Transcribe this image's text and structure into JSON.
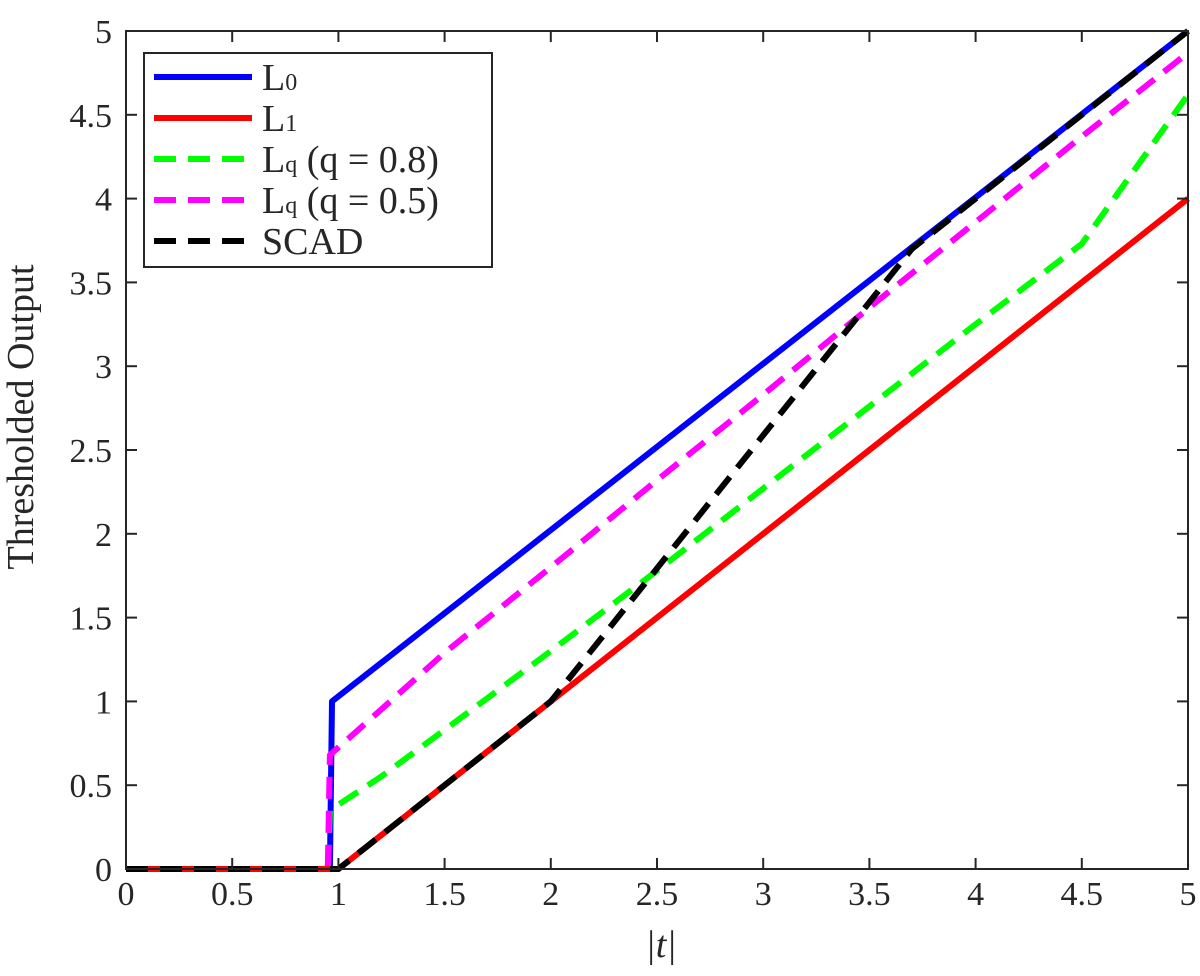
{
  "chart_data": {
    "type": "line",
    "title": "",
    "xlabel": "|t|",
    "ylabel": "Thresholded Output",
    "xlim": [
      0,
      5
    ],
    "ylim": [
      0,
      5
    ],
    "grid": false,
    "legend_position": "top-left",
    "x_ticks": [
      0,
      0.5,
      1,
      1.5,
      2,
      2.5,
      3,
      3.5,
      4,
      4.5,
      5
    ],
    "y_ticks": [
      0,
      0.5,
      1,
      1.5,
      2,
      2.5,
      3,
      3.5,
      4,
      4.5,
      5
    ],
    "x_tick_labels": [
      "0",
      "0.5",
      "1",
      "1.5",
      "2",
      "2.5",
      "3",
      "3.5",
      "4",
      "4.5",
      "5"
    ],
    "y_tick_labels": [
      "0",
      "0.5",
      "1",
      "1.5",
      "2",
      "2.5",
      "3",
      "3.5",
      "4",
      "4.5",
      "5"
    ],
    "series": [
      {
        "key": "l0",
        "legend_main": "L",
        "legend_sub": "0",
        "color": "#0000ff",
        "style": "solid",
        "points": [
          [
            0,
            0
          ],
          [
            0.95,
            0
          ],
          [
            0.96,
            0
          ],
          [
            0.97,
            1.0
          ],
          [
            5,
            5
          ]
        ]
      },
      {
        "key": "lq08",
        "legend_main": "L",
        "legend_sub": "q",
        "legend_suffix": " (q = 0.8)",
        "color": "#00ff00",
        "style": "dashed",
        "points": [
          [
            0,
            0
          ],
          [
            0.94,
            0
          ],
          [
            0.95,
            0
          ],
          [
            0.96,
            0.35
          ],
          [
            1.2,
            0.55
          ],
          [
            1.5,
            0.83
          ],
          [
            2,
            1.3
          ],
          [
            2.5,
            1.78
          ],
          [
            3,
            2.27
          ],
          [
            3.5,
            2.76
          ],
          [
            4,
            3.25
          ],
          [
            4.5,
            3.73
          ],
          [
            5,
            4.62
          ]
        ]
      },
      {
        "key": "lq05",
        "legend_main": "L",
        "legend_sub": "q",
        "legend_suffix": " (q = 0.5)",
        "color": "#ff00ff",
        "style": "dashed",
        "points": [
          [
            0,
            0
          ],
          [
            0.94,
            0
          ],
          [
            0.95,
            0
          ],
          [
            0.96,
            0.68
          ],
          [
            1.2,
            0.95
          ],
          [
            1.5,
            1.29
          ],
          [
            2,
            1.8
          ],
          [
            2.5,
            2.32
          ],
          [
            3,
            2.83
          ],
          [
            3.5,
            3.35
          ],
          [
            4,
            3.86
          ],
          [
            4.5,
            4.37
          ],
          [
            5,
            4.87
          ]
        ]
      },
      {
        "key": "l1",
        "legend_main": "L",
        "legend_sub": "1",
        "color": "#ff0000",
        "style": "solid",
        "points": [
          [
            0,
            0
          ],
          [
            1,
            0
          ],
          [
            5,
            4
          ]
        ]
      },
      {
        "key": "scad",
        "legend_main": "SCAD",
        "legend_sub": "",
        "color": "#000000",
        "style": "dashed",
        "points": [
          [
            0,
            0
          ],
          [
            1,
            0
          ],
          [
            2,
            1
          ],
          [
            3.7,
            3.7
          ],
          [
            5,
            5
          ]
        ]
      }
    ],
    "legend_order": [
      "l0",
      "l1",
      "lq08",
      "lq05",
      "scad"
    ]
  }
}
